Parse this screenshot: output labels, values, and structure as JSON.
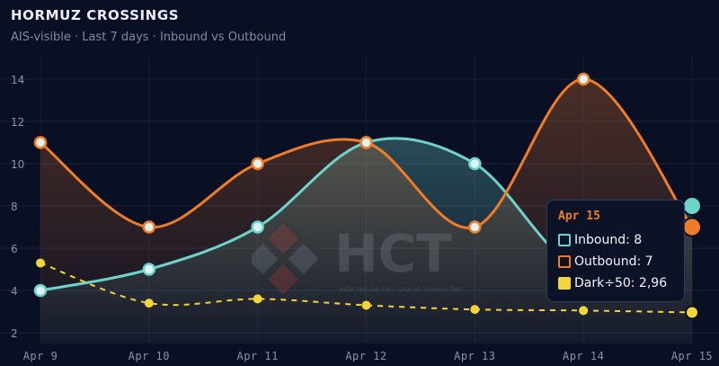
{
  "header": {
    "title": "HORMUZ CROSSINGS",
    "subtitle": "AIS-visible · Last 7 days · Inbound vs Outbound"
  },
  "tooltip": {
    "title": "Apr 15",
    "rows": [
      {
        "label": "Inbound: 8",
        "color": "#6fd3cd"
      },
      {
        "label": "Outbound: 7",
        "color": "#f07c2a"
      },
      {
        "label": "Dark÷50: 2,96",
        "color": "#f3d43a"
      }
    ]
  },
  "watermark": {
    "text": "HCT",
    "tagline": "KIẾN TẠO GIÁ TRỊ – CHIA SẺ THÀNH CÔNG"
  },
  "chart_data": {
    "type": "line",
    "title": "HORMUZ CROSSINGS",
    "subtitle": "AIS-visible · Last 7 days · Inbound vs Outbound",
    "categories": [
      "Apr 9",
      "Apr 10",
      "Apr 11",
      "Apr 12",
      "Apr 13",
      "Apr 14",
      "Apr 15"
    ],
    "yticks": [
      2,
      4,
      6,
      8,
      10,
      12,
      14
    ],
    "ylim": [
      1.5,
      15.5
    ],
    "grid": true,
    "series": [
      {
        "name": "Inbound",
        "color": "#6fd3cd",
        "values": [
          4,
          5,
          7,
          11,
          10,
          5,
          8
        ],
        "area": true
      },
      {
        "name": "Outbound",
        "color": "#f07c2a",
        "values": [
          11,
          7,
          10,
          11,
          7,
          14,
          7
        ],
        "area": true
      },
      {
        "name": "Dark÷50",
        "color": "#f3d43a",
        "values": [
          5.3,
          3.4,
          3.6,
          3.3,
          3.1,
          3.05,
          2.96
        ],
        "dashed": true
      }
    ]
  }
}
